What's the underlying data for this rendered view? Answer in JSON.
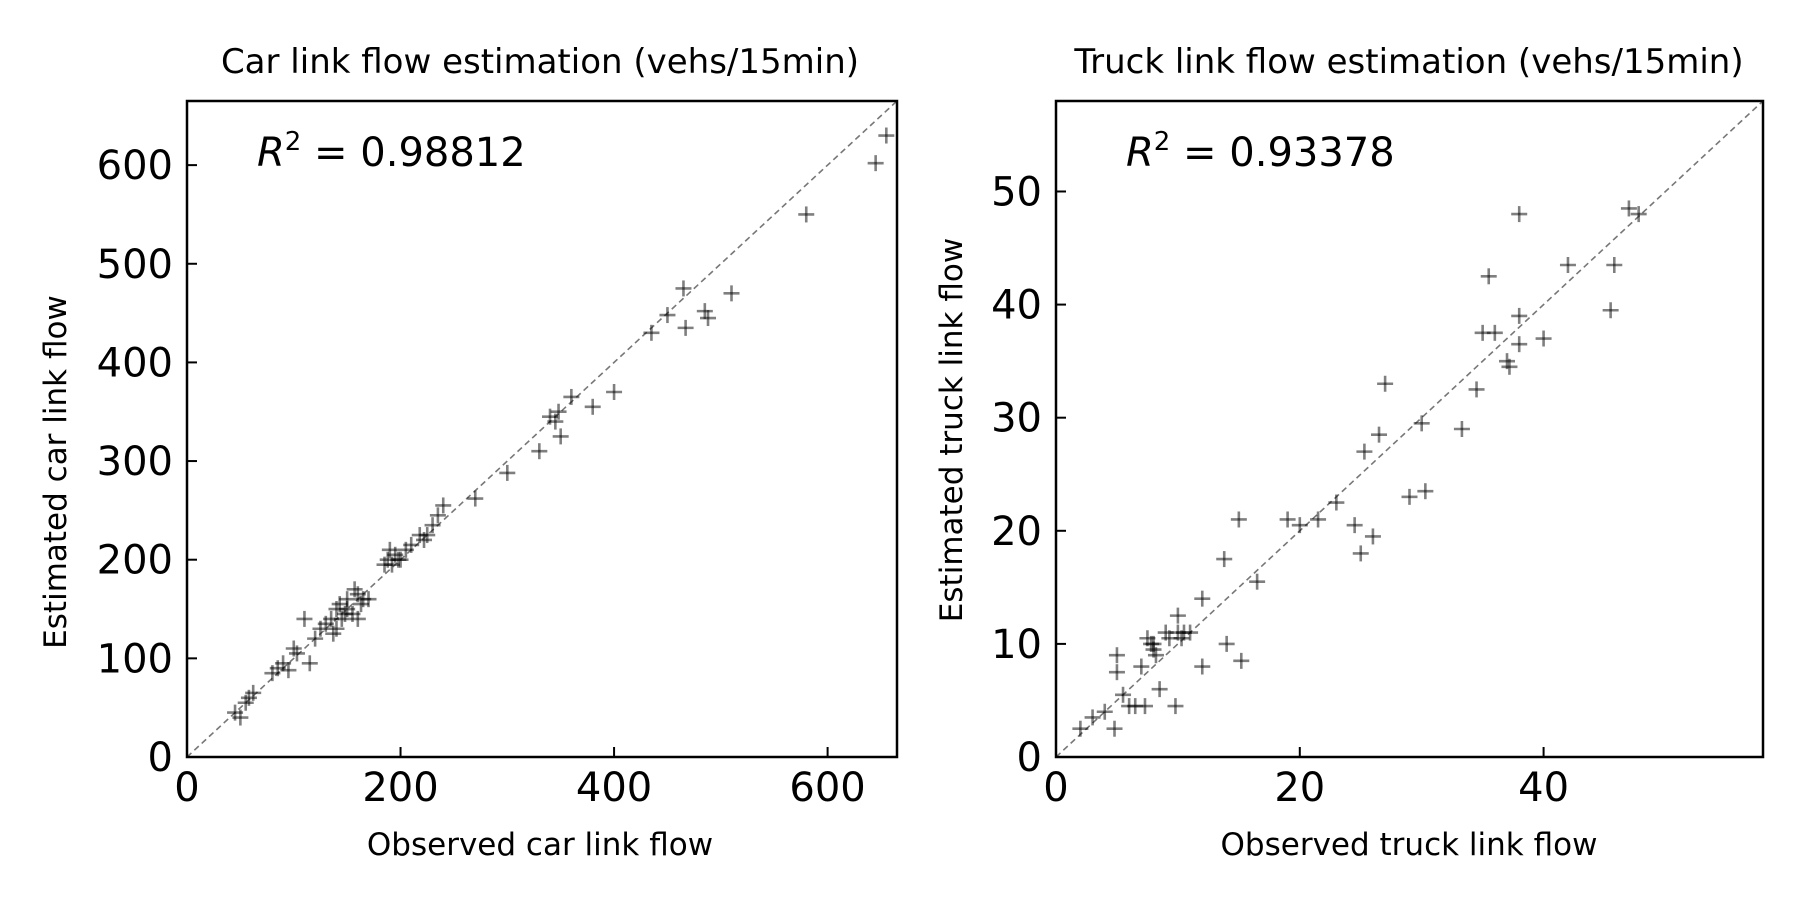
{
  "chart_data": [
    {
      "type": "scatter",
      "title": "Car link flow estimation (vehs/15min)",
      "xlabel": "Observed car link flow",
      "ylabel": "Estimated car link flow",
      "annotation": {
        "symbol": "R",
        "superscript": "2",
        "text": " = 0.98812"
      },
      "xlim": [
        0,
        665
      ],
      "ylim": [
        0,
        665
      ],
      "xticks": [
        0,
        200,
        400,
        600
      ],
      "yticks": [
        0,
        100,
        200,
        300,
        400,
        500,
        600
      ],
      "xtick_labels": [
        "0",
        "200",
        "400",
        "600"
      ],
      "ytick_labels": [
        "0",
        "100",
        "200",
        "300",
        "400",
        "500",
        "600"
      ],
      "grid": false,
      "reference_line": "y = x",
      "marker": "+",
      "marker_color": "#808080",
      "x": [
        45,
        50,
        55,
        58,
        62,
        80,
        85,
        90,
        95,
        100,
        103,
        110,
        115,
        120,
        125,
        130,
        135,
        137,
        140,
        140,
        143,
        145,
        148,
        150,
        150,
        155,
        157,
        160,
        160,
        163,
        165,
        170,
        185,
        188,
        190,
        192,
        195,
        198,
        200,
        205,
        210,
        218,
        222,
        225,
        230,
        235,
        240,
        270,
        300,
        330,
        340,
        345,
        348,
        350,
        360,
        380,
        400,
        435,
        450,
        465,
        467,
        485,
        488,
        510,
        580,
        645,
        655
      ],
      "y": [
        45,
        40,
        55,
        60,
        65,
        85,
        90,
        95,
        88,
        110,
        105,
        140,
        95,
        120,
        130,
        135,
        140,
        125,
        150,
        130,
        155,
        140,
        145,
        150,
        160,
        145,
        170,
        165,
        140,
        155,
        160,
        160,
        195,
        200,
        210,
        195,
        205,
        200,
        200,
        210,
        215,
        225,
        220,
        225,
        235,
        245,
        255,
        262,
        288,
        310,
        345,
        340,
        350,
        325,
        365,
        355,
        370,
        430,
        448,
        475,
        435,
        452,
        445,
        470,
        550,
        602,
        630
      ]
    },
    {
      "type": "scatter",
      "title": "Truck link flow estimation (vehs/15min)",
      "xlabel": "Observed truck link flow",
      "ylabel": "Estimated truck link flow",
      "annotation": {
        "symbol": "R",
        "superscript": "2",
        "text": " = 0.93378"
      },
      "xlim": [
        0,
        58
      ],
      "ylim": [
        0,
        58
      ],
      "xticks": [
        0,
        20,
        40
      ],
      "yticks": [
        0,
        10,
        20,
        30,
        40,
        50
      ],
      "xtick_labels": [
        "0",
        "20",
        "40"
      ],
      "ytick_labels": [
        "0",
        "10",
        "20",
        "30",
        "40",
        "50"
      ],
      "grid": false,
      "reference_line": "y = x",
      "marker": "+",
      "marker_color": "#808080",
      "x": [
        2,
        3,
        4,
        4.8,
        5,
        5,
        5.5,
        6,
        6.5,
        7,
        7.3,
        7.5,
        7.8,
        8,
        8,
        8.2,
        8.5,
        9,
        9.3,
        9.8,
        10,
        10,
        10.3,
        10.5,
        11,
        12,
        12,
        13.8,
        14,
        15,
        15.2,
        16.5,
        19,
        20,
        21.5,
        23,
        24.5,
        25,
        25.3,
        26,
        26.5,
        27,
        29,
        30,
        30.3,
        33.3,
        34.5,
        35,
        35.5,
        36,
        37,
        37.2,
        38,
        38,
        38,
        40,
        42,
        45.5,
        45.8,
        47,
        47.8
      ],
      "y": [
        2.5,
        3.5,
        4,
        2.5,
        9,
        7.5,
        5.5,
        4.5,
        4.5,
        8,
        4.5,
        10.5,
        10,
        9.5,
        10,
        9,
        6,
        11,
        10.5,
        4.5,
        11,
        12.5,
        10.5,
        11,
        11,
        14,
        8,
        17.5,
        10,
        21,
        8.5,
        15.5,
        21,
        20.5,
        21,
        22.5,
        20.5,
        18,
        27,
        19.5,
        28.5,
        33,
        23,
        29.5,
        23.5,
        29,
        32.5,
        37.5,
        42.5,
        37.5,
        35,
        34.5,
        39,
        36.5,
        48,
        37,
        43.5,
        39.5,
        43.5,
        48.5,
        48
      ]
    }
  ]
}
